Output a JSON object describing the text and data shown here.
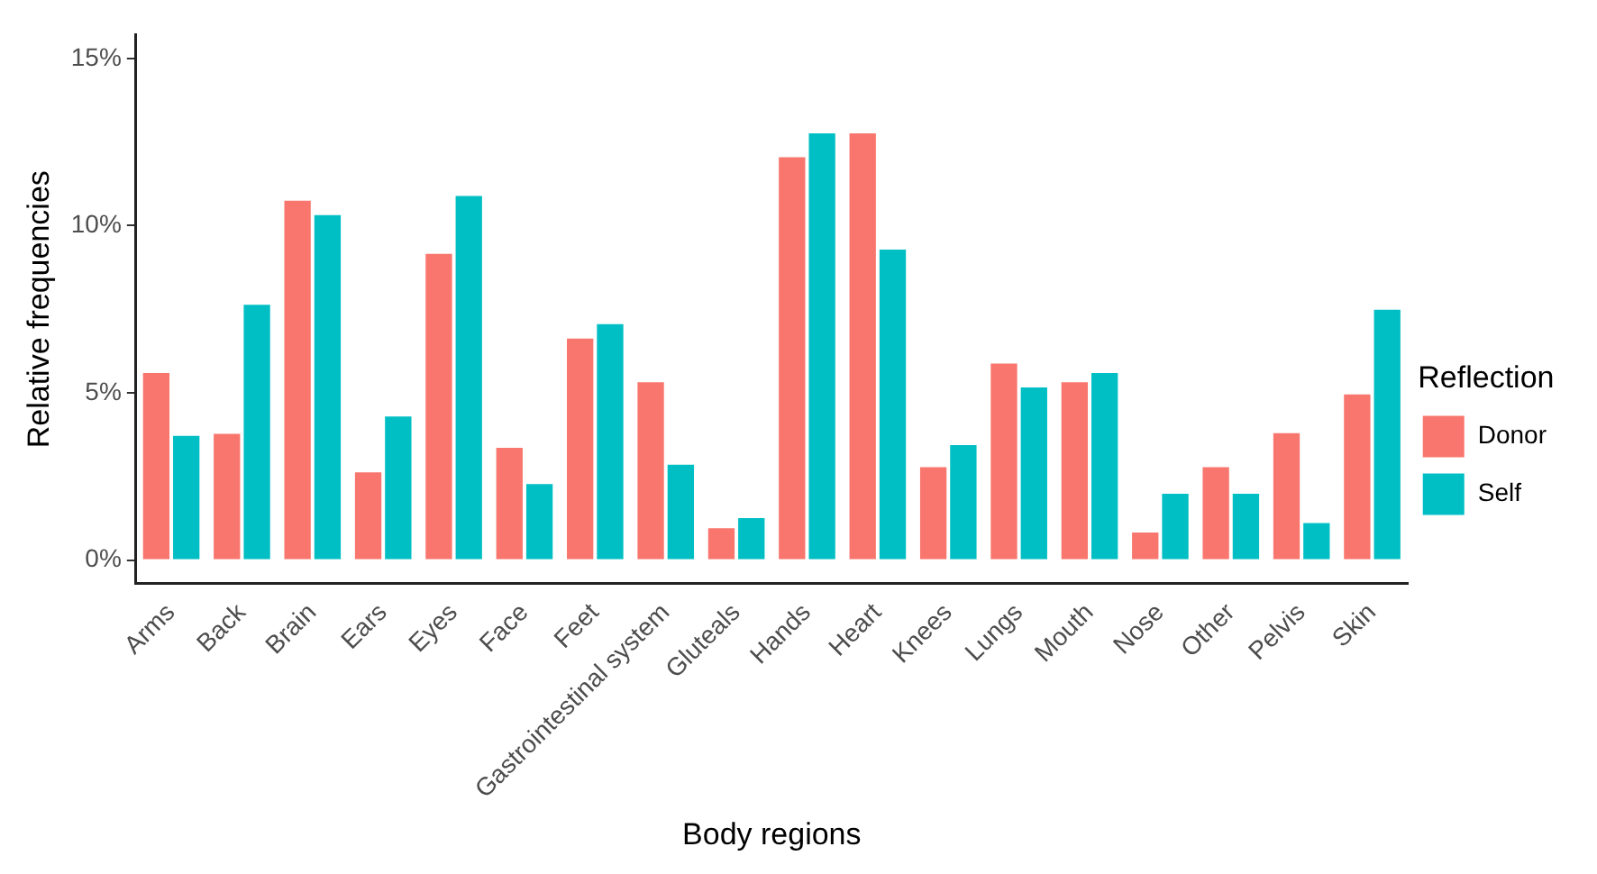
{
  "chart_data": {
    "type": "bar",
    "xlabel": "Body regions",
    "ylabel": "Relative frequencies",
    "legend_title": "Reflection",
    "legend": "right",
    "categories": [
      "Arms",
      "Back",
      "Brain",
      "Ears",
      "Eyes",
      "Face",
      "Feet",
      "Gastrointestinal system",
      "Gluteals",
      "Hands",
      "Heart",
      "Knees",
      "Lungs",
      "Mouth",
      "Nose",
      "Other",
      "Pelvis",
      "Skin"
    ],
    "series": [
      {
        "name": "Donor",
        "color": "#f8766d",
        "values": [
          5.65,
          3.83,
          10.8,
          2.68,
          9.21,
          3.41,
          6.68,
          5.37,
          1.01,
          12.1,
          12.81,
          2.83,
          5.93,
          5.37,
          0.88,
          2.83,
          3.85,
          5.01
        ]
      },
      {
        "name": "Self",
        "color": "#00bfc4",
        "values": [
          3.77,
          7.69,
          10.37,
          4.35,
          10.94,
          2.33,
          7.11,
          2.91,
          1.31,
          12.81,
          9.34,
          3.49,
          5.22,
          5.65,
          2.04,
          2.04,
          1.16,
          7.54
        ]
      }
    ],
    "ylim": [
      -0.7,
      15.7
    ],
    "yticks": [
      {
        "value": 0,
        "label": "0%"
      },
      {
        "value": 5,
        "label": "5%"
      },
      {
        "value": 10,
        "label": "10%"
      },
      {
        "value": 15,
        "label": "15%"
      }
    ],
    "grid": false
  }
}
